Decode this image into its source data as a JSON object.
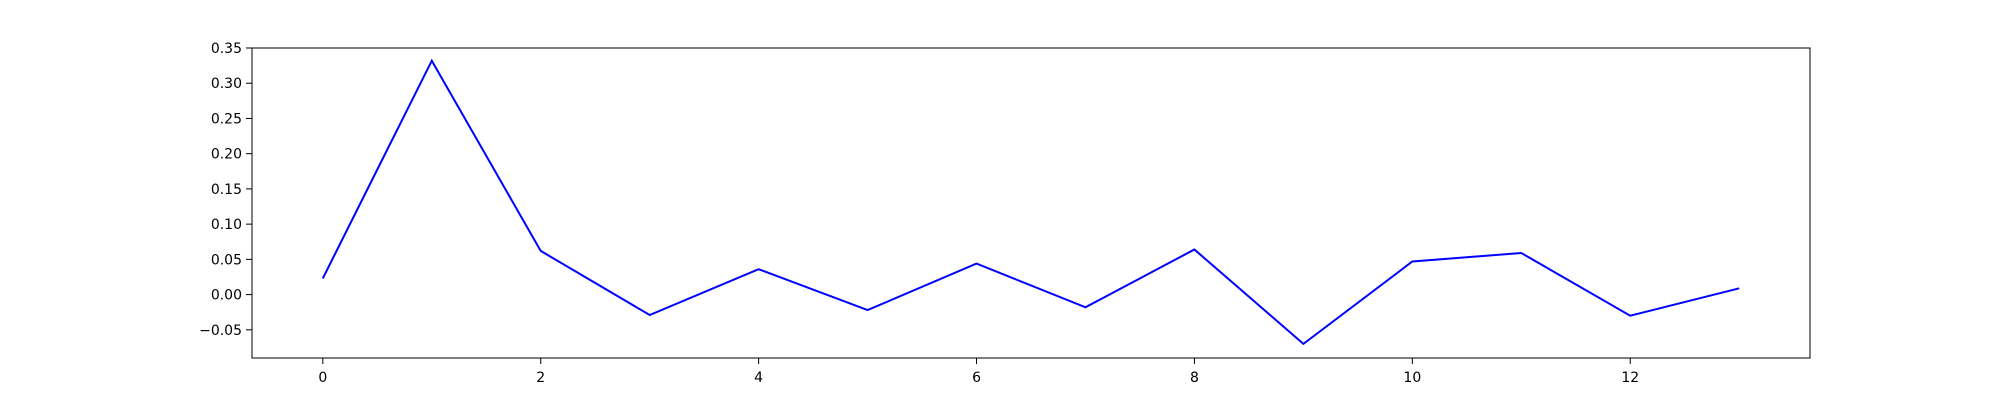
{
  "chart_data": {
    "type": "line",
    "title": "",
    "xlabel": "",
    "ylabel": "",
    "grid": false,
    "xlim": [
      -0.65,
      13.65
    ],
    "ylim": [
      -0.09,
      0.35
    ],
    "xticks": [
      0,
      2,
      4,
      6,
      8,
      10,
      12
    ],
    "xtick_labels": [
      "0",
      "2",
      "4",
      "6",
      "8",
      "10",
      "12"
    ],
    "yticks": [
      -0.05,
      0.0,
      0.05,
      0.1,
      0.15,
      0.2,
      0.25,
      0.3,
      0.35
    ],
    "ytick_labels": [
      "−0.05",
      "0.00",
      "0.05",
      "0.10",
      "0.15",
      "0.20",
      "0.25",
      "0.30",
      "0.35"
    ],
    "series": [
      {
        "color": "#0000ff",
        "x": [
          0,
          1,
          2,
          3,
          4,
          5,
          6,
          7,
          8,
          9,
          10,
          11,
          12,
          13
        ],
        "y": [
          0.023,
          0.332,
          0.062,
          -0.029,
          0.036,
          -0.022,
          0.044,
          -0.018,
          0.064,
          -0.07,
          0.047,
          0.059,
          -0.03,
          0.009
        ]
      }
    ]
  }
}
